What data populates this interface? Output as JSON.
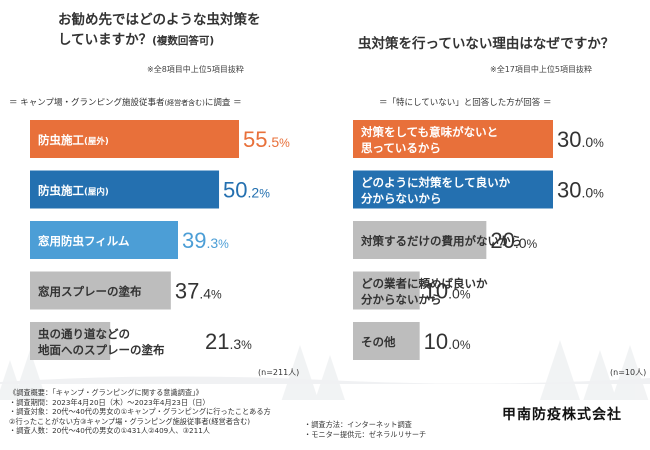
{
  "colors": {
    "orange": "#E8703A",
    "blue": "#2470B0",
    "lightblue": "#4C9ED6",
    "gray": "#BDBDBD",
    "orangeText": "#E8703A"
  },
  "left": {
    "title_line1": "お勧め先ではどのような虫対策を",
    "title_line2": "していますか？",
    "title_sub": "(複数回答可)",
    "note": "※全8項目中上位5項目抜粋",
    "section": "＝ キャンプ場・グランピング施設従事者",
    "section_small": "(経営者含む)",
    "section_tail": "に調査 ＝",
    "n_label": "(n=211人)"
  },
  "right": {
    "title": "虫対策を行っていない理由はなぜですか？",
    "note": "※全17項目中上位5項目抜粋",
    "section": "＝「特にしていない」と回答した方が回答 ＝",
    "n_label": "(n=10人)"
  },
  "chart_data": [
    {
      "type": "bar",
      "orientation": "horizontal",
      "title": "お勧め先ではどのような虫対策をしていますか？(複数回答可)",
      "categories": [
        "防虫施工(屋外)",
        "防虫施工(屋内)",
        "窓用防虫フィルム",
        "窓用スプレーの塗布",
        "虫の通り道などの地面へのスプレーの塗布"
      ],
      "values": [
        55.5,
        50.2,
        39.3,
        37.4,
        21.3
      ],
      "labels": [
        {
          "l1": "防虫施工",
          "l1s": "(屋外)"
        },
        {
          "l1": "防虫施工",
          "l1s": "(屋内)"
        },
        {
          "l1": "窓用防虫フィルム"
        },
        {
          "l1": "窓用スプレーの塗布"
        },
        {
          "l1": "虫の通り道などの",
          "l2": "地面へのスプレーの塗布"
        }
      ],
      "value_int": [
        "55",
        "50",
        "39",
        "37",
        "21"
      ],
      "value_dec": [
        ".5",
        ".2",
        ".3",
        ".4",
        ".3"
      ],
      "unit": "%",
      "colors": [
        "#E8703A",
        "#2470B0",
        "#4C9ED6",
        "#BDBDBD",
        "#BDBDBD"
      ]
    },
    {
      "type": "bar",
      "orientation": "horizontal",
      "title": "虫対策を行っていない理由はなぜですか？",
      "categories": [
        "対策をしても意味がないと思っているから",
        "どのように対策をして良いか分からないから",
        "対策するだけの費用がないから",
        "どの業者に頼めば良いか分からないから",
        "その他"
      ],
      "values": [
        30.0,
        30.0,
        20.0,
        10.0,
        10.0
      ],
      "labels": [
        {
          "l1": "対策をしても意味がないと",
          "l2": "思っているから"
        },
        {
          "l1": "どのように対策をして良いか",
          "l2": "分からないから"
        },
        {
          "l1": "対策するだけの費用がないから"
        },
        {
          "l1": "どの業者に頼めば良いか",
          "l2": "分からないから"
        },
        {
          "l1": "その他"
        }
      ],
      "value_int": [
        "30",
        "30",
        "20",
        "10",
        "10"
      ],
      "value_dec": [
        ".0",
        ".0",
        ".0",
        ".0",
        ".0"
      ],
      "unit": "%",
      "colors": [
        "#E8703A",
        "#2470B0",
        "#BDBDBD",
        "#BDBDBD",
        "#BDBDBD"
      ]
    }
  ],
  "footer": {
    "lines": [
      "《調査概要：「キャンプ・グランピングに関する意識調査」》",
      "・調査期間：2023年4月20日（木）～2023年4月23日（日）",
      "・調査対象：20代～40代の男女の①キャンプ・グランピングに行ったことある方",
      "②行ったことがない方③キャンプ場・グランピング施設従事者(経営者含む)",
      "・調査人数：20代～40代の男女の①431人②409人、③211人"
    ],
    "method": "・調査方法：インターネット調査",
    "monitor": "・モニター提供元：ゼネラルリサーチ",
    "company": "甲南防疫株式会社"
  }
}
